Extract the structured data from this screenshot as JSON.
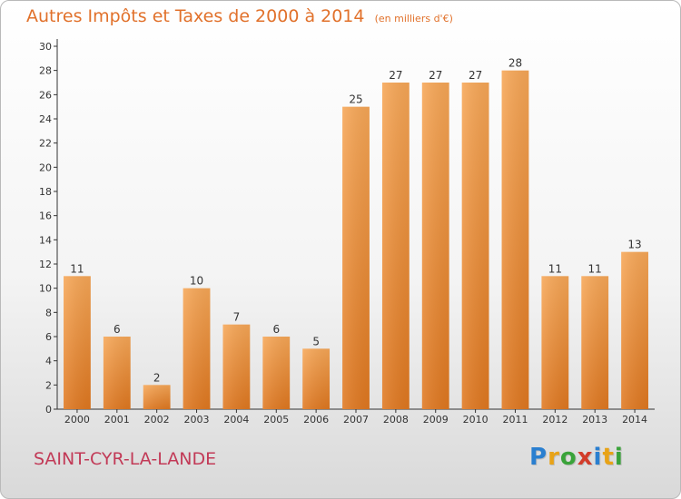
{
  "chart_data": {
    "type": "bar",
    "title": "Autres Impôts et Taxes de 2000 à 2014",
    "subtitle": "(en milliers d'€)",
    "categories": [
      "2000",
      "2001",
      "2002",
      "2003",
      "2004",
      "2005",
      "2006",
      "2007",
      "2008",
      "2009",
      "2010",
      "2011",
      "2012",
      "2013",
      "2014"
    ],
    "values": [
      11,
      6,
      2,
      10,
      7,
      6,
      5,
      25,
      27,
      27,
      27,
      28,
      11,
      11,
      13
    ],
    "ylim": [
      0,
      30
    ],
    "yticks": [
      0,
      2,
      4,
      6,
      8,
      10,
      12,
      14,
      16,
      18,
      20,
      22,
      24,
      26,
      28,
      30
    ],
    "grid": false,
    "colors": {
      "bar_top": "#f7a757",
      "bar_bottom": "#e07820",
      "text": "#e1712b",
      "axis": "#333333"
    }
  },
  "place_name": "SAINT-CYR-LA-LANDE",
  "logo": {
    "letters": [
      "P",
      "r",
      "o",
      "x",
      "i",
      "t",
      "i"
    ],
    "colors": [
      "#2a7fd0",
      "#e8a317",
      "#3aa33a",
      "#d23c2a",
      "#2a7fd0",
      "#e8a317",
      "#3aa33a"
    ]
  }
}
